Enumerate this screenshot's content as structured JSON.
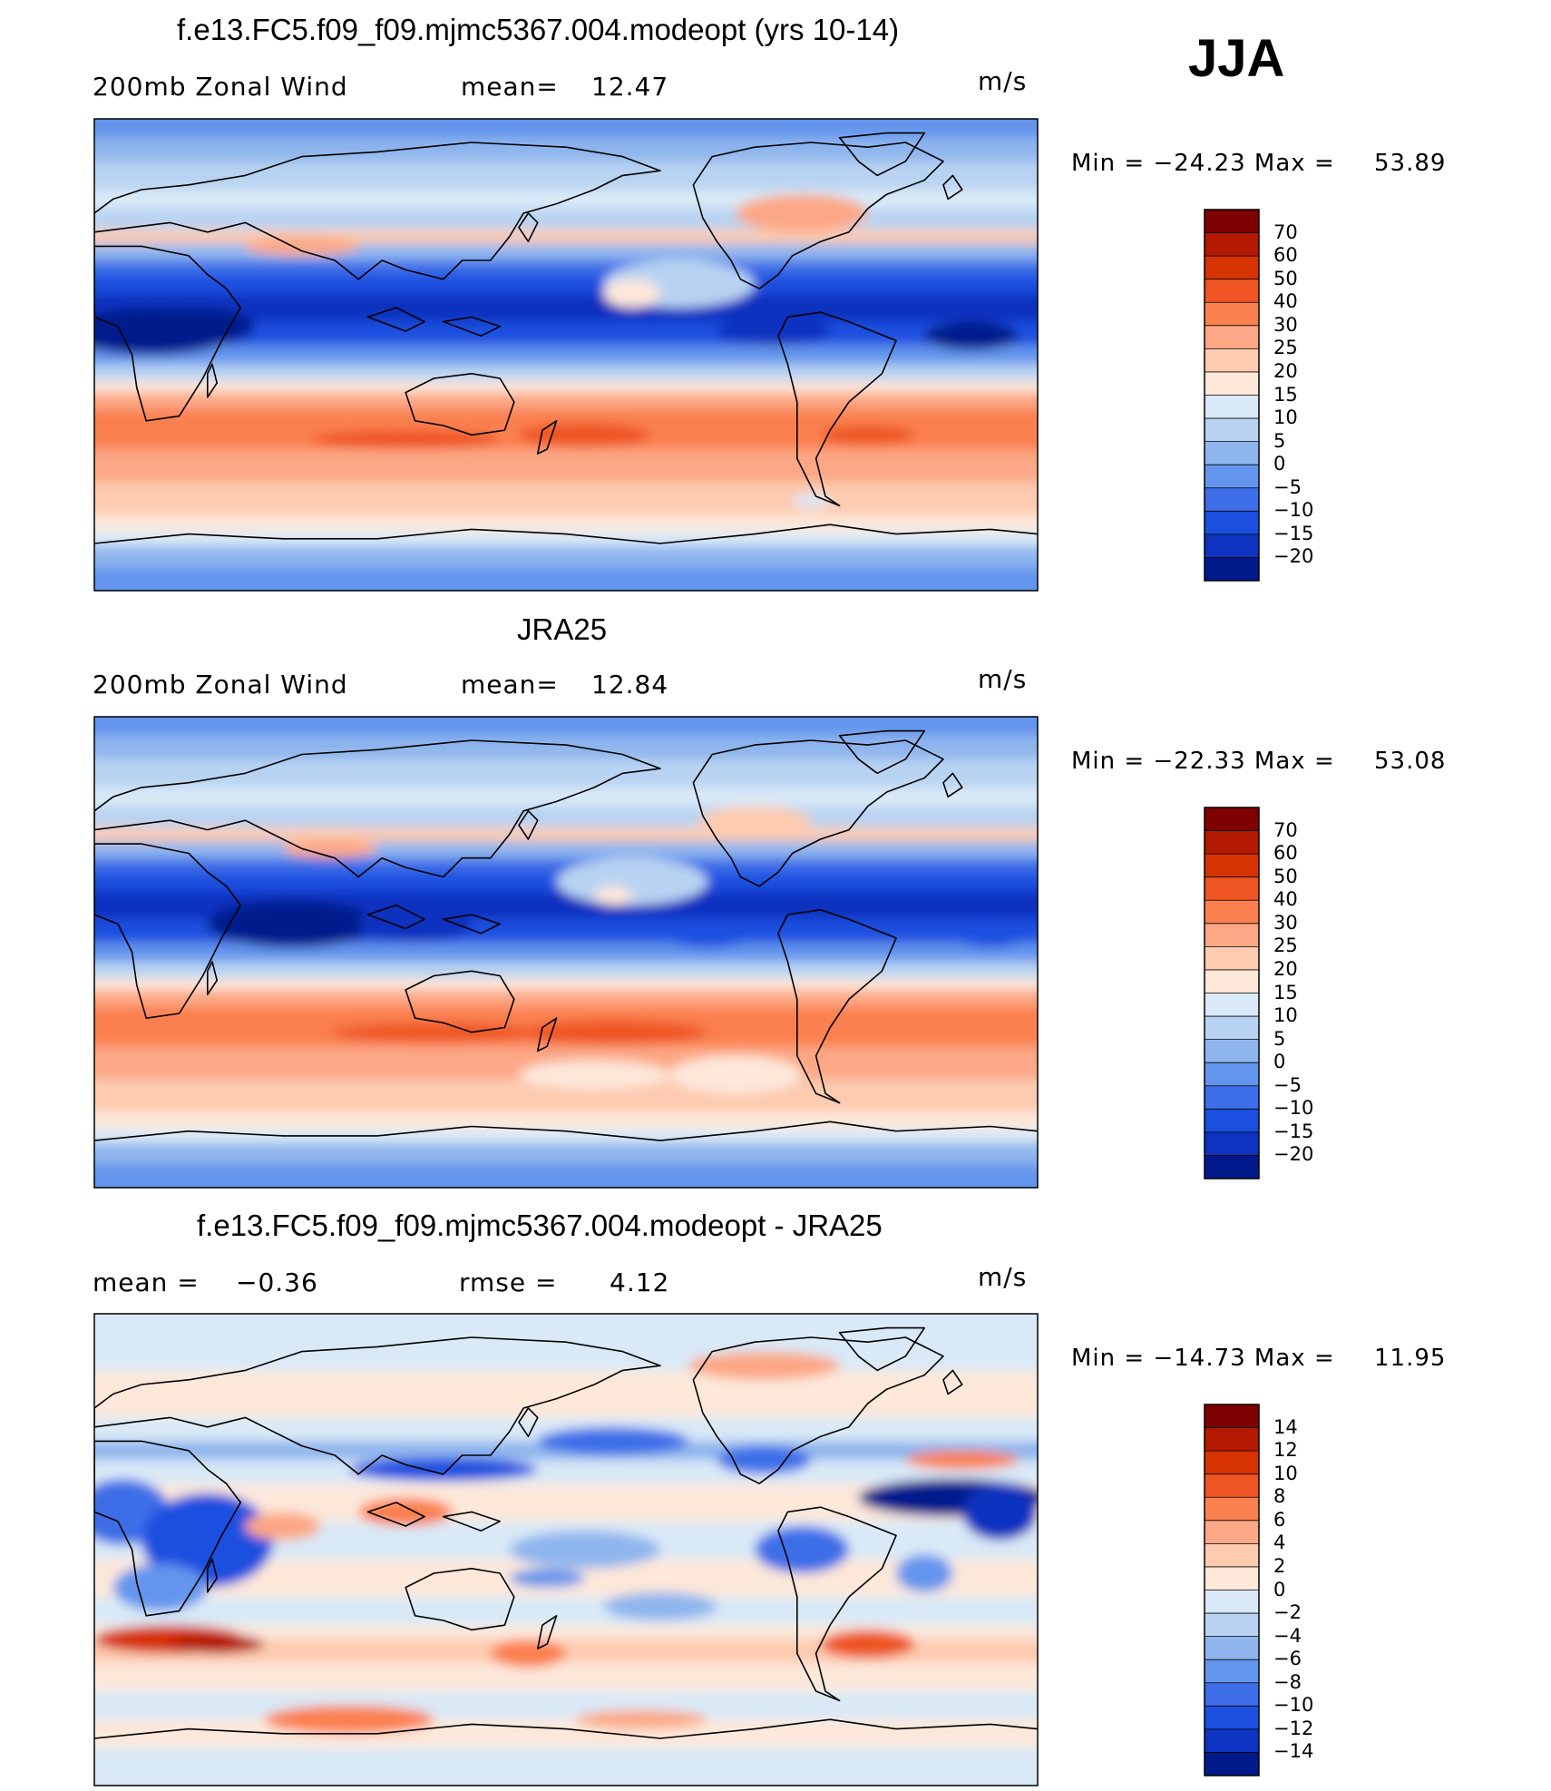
{
  "season": "JJA",
  "chart_data": [
    {
      "type": "heatmap",
      "title": "f.e13.FC5.f09_f09.mjmc5367.004.modeopt (yrs 10-14)",
      "left_label": "200mb  Zonal  Wind",
      "stat_label": "mean=",
      "stat_value": "12.47",
      "units": "m/s",
      "min_label": "Min  =  −24.23  Max  =",
      "max_value": "53.89",
      "min": -24.23,
      "max": 53.89,
      "levels": [
        "70",
        "60",
        "50",
        "40",
        "30",
        "25",
        "20",
        "15",
        "10",
        "5",
        "0",
        "−5",
        "−10",
        "−15",
        "−20"
      ],
      "colors": [
        "#7f0000",
        "#b31900",
        "#d63300",
        "#ee5522",
        "#fb8050",
        "#fca785",
        "#fdcbb0",
        "#fde8da",
        "#d9e9f7",
        "#b8d3f2",
        "#8fb5ee",
        "#6495ed",
        "#3d6ee8",
        "#1a4fe0",
        "#0d33c0",
        "#001a8c"
      ]
    },
    {
      "type": "heatmap",
      "title": "JRA25",
      "left_label": "200mb  Zonal  Wind",
      "stat_label": "mean=",
      "stat_value": "12.84",
      "units": "m/s",
      "min_label": "Min  =  −22.33  Max  =",
      "max_value": "53.08",
      "min": -22.33,
      "max": 53.08,
      "levels": [
        "70",
        "60",
        "50",
        "40",
        "30",
        "25",
        "20",
        "15",
        "10",
        "5",
        "0",
        "−5",
        "−10",
        "−15",
        "−20"
      ],
      "colors": [
        "#7f0000",
        "#b31900",
        "#d63300",
        "#ee5522",
        "#fb8050",
        "#fca785",
        "#fdcbb0",
        "#fde8da",
        "#d9e9f7",
        "#b8d3f2",
        "#8fb5ee",
        "#6495ed",
        "#3d6ee8",
        "#1a4fe0",
        "#0d33c0",
        "#001a8c"
      ]
    },
    {
      "type": "heatmap",
      "title": "f.e13.FC5.f09_f09.mjmc5367.004.modeopt - JRA25",
      "left_label": "mean  =",
      "left_value": "−0.36",
      "stat_label": "rmse  =",
      "stat_value": "4.12",
      "units": "m/s",
      "min_label": "Min  =  −14.73  Max  =",
      "max_value": "11.95",
      "min": -14.73,
      "max": 11.95,
      "levels": [
        "14",
        "12",
        "10",
        "8",
        "6",
        "4",
        "2",
        "0",
        "−2",
        "−4",
        "−6",
        "−8",
        "−10",
        "−12",
        "−14"
      ],
      "colors": [
        "#7f0000",
        "#b31900",
        "#d63300",
        "#ee5522",
        "#fb8050",
        "#fca785",
        "#fdcbb0",
        "#fde8da",
        "#d9e9f7",
        "#b8d3f2",
        "#8fb5ee",
        "#6495ed",
        "#3d6ee8",
        "#1a4fe0",
        "#0d33c0",
        "#001a8c"
      ]
    }
  ]
}
